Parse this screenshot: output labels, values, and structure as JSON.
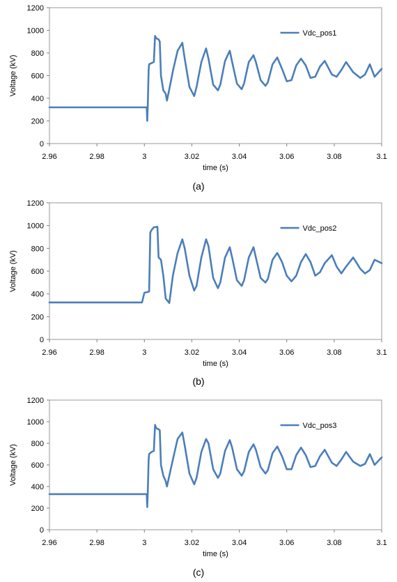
{
  "chart_data": [
    {
      "type": "line",
      "caption": "(a)",
      "xlabel": "time (s)",
      "ylabel": "Voltage (kV)",
      "xlim": [
        2.96,
        3.1
      ],
      "ylim": [
        0,
        1200
      ],
      "xticks": [
        "2.96",
        "2.98",
        "3",
        "3.02",
        "3.04",
        "3.06",
        "3.08",
        "3.1"
      ],
      "yticks": [
        "0",
        "200",
        "400",
        "600",
        "800",
        "1000",
        "1200"
      ],
      "legend_position": "top-right",
      "grid": false,
      "series": [
        {
          "name": "Vdc_pos1",
          "color": "#4a7ebb",
          "x": [
            2.96,
            2.99,
            3.001,
            3.0012,
            3.0014,
            3.0018,
            3.002,
            3.003,
            3.004,
            3.0045,
            3.005,
            3.006,
            3.0065,
            3.007,
            3.008,
            3.009,
            3.0095,
            3.0105,
            3.012,
            3.014,
            3.016,
            3.017,
            3.019,
            3.021,
            3.022,
            3.024,
            3.026,
            3.027,
            3.029,
            3.031,
            3.032,
            3.034,
            3.036,
            3.037,
            3.039,
            3.041,
            3.042,
            3.044,
            3.046,
            3.047,
            3.049,
            3.051,
            3.052,
            3.054,
            3.056,
            3.058,
            3.06,
            3.062,
            3.064,
            3.066,
            3.068,
            3.07,
            3.072,
            3.074,
            3.076,
            3.079,
            3.081,
            3.083,
            3.085,
            3.088,
            3.091,
            3.093,
            3.095,
            3.097,
            3.1
          ],
          "y": [
            320,
            320,
            320,
            200,
            320,
            650,
            700,
            710,
            720,
            950,
            930,
            920,
            900,
            600,
            470,
            440,
            380,
            480,
            640,
            820,
            890,
            750,
            500,
            420,
            500,
            720,
            840,
            750,
            520,
            470,
            520,
            730,
            820,
            720,
            530,
            480,
            530,
            720,
            780,
            720,
            560,
            510,
            540,
            700,
            760,
            660,
            550,
            560,
            690,
            750,
            690,
            580,
            590,
            680,
            730,
            610,
            590,
            650,
            720,
            630,
            580,
            610,
            700,
            590,
            660
          ]
        }
      ]
    },
    {
      "type": "line",
      "caption": "(b)",
      "xlabel": "time (s)",
      "ylabel": "Voltage (kV)",
      "xlim": [
        2.96,
        3.1
      ],
      "ylim": [
        0,
        1200
      ],
      "xticks": [
        "2.96",
        "2.98",
        "3",
        "3.02",
        "3.04",
        "3.06",
        "3.08",
        "3.1"
      ],
      "yticks": [
        "0",
        "200",
        "400",
        "600",
        "800",
        "1000",
        "1200"
      ],
      "legend_position": "top-right",
      "grid": false,
      "series": [
        {
          "name": "Vdc_pos2",
          "color": "#4a7ebb",
          "x": [
            2.96,
            2.999,
            3.0,
            3.002,
            3.0025,
            3.003,
            3.004,
            3.0055,
            3.006,
            3.007,
            3.008,
            3.009,
            3.0105,
            3.012,
            3.014,
            3.016,
            3.017,
            3.019,
            3.021,
            3.022,
            3.024,
            3.026,
            3.027,
            3.029,
            3.031,
            3.032,
            3.034,
            3.036,
            3.037,
            3.039,
            3.041,
            3.042,
            3.044,
            3.046,
            3.047,
            3.049,
            3.051,
            3.052,
            3.054,
            3.056,
            3.058,
            3.06,
            3.062,
            3.064,
            3.066,
            3.068,
            3.07,
            3.072,
            3.074,
            3.076,
            3.079,
            3.081,
            3.083,
            3.085,
            3.088,
            3.091,
            3.093,
            3.095,
            3.097,
            3.1
          ],
          "y": [
            325,
            325,
            410,
            420,
            940,
            960,
            985,
            990,
            720,
            700,
            560,
            360,
            320,
            560,
            760,
            880,
            800,
            560,
            430,
            470,
            720,
            880,
            820,
            540,
            450,
            500,
            720,
            810,
            720,
            520,
            470,
            520,
            720,
            810,
            720,
            540,
            500,
            530,
            700,
            760,
            680,
            560,
            510,
            560,
            680,
            750,
            680,
            560,
            590,
            670,
            740,
            640,
            580,
            640,
            720,
            620,
            580,
            610,
            700,
            670
          ]
        }
      ]
    },
    {
      "type": "line",
      "caption": "(c)",
      "xlabel": "time (s)",
      "ylabel": "Voltage (kV)",
      "xlim": [
        2.96,
        3.1
      ],
      "ylim": [
        0,
        1200
      ],
      "xticks": [
        "2.96",
        "2.98",
        "3",
        "3.02",
        "3.04",
        "3.06",
        "3.08",
        "3.1"
      ],
      "yticks": [
        "0",
        "200",
        "400",
        "600",
        "800",
        "1000",
        "1200"
      ],
      "legend_position": "top-right",
      "grid": false,
      "series": [
        {
          "name": "Vdc_pos3",
          "color": "#4a7ebb",
          "x": [
            2.96,
            2.99,
            3.001,
            3.0012,
            3.0014,
            3.0018,
            3.002,
            3.003,
            3.004,
            3.0045,
            3.005,
            3.006,
            3.0065,
            3.007,
            3.008,
            3.009,
            3.0095,
            3.0105,
            3.012,
            3.014,
            3.016,
            3.017,
            3.019,
            3.021,
            3.022,
            3.024,
            3.026,
            3.027,
            3.029,
            3.031,
            3.032,
            3.034,
            3.036,
            3.037,
            3.039,
            3.041,
            3.042,
            3.044,
            3.046,
            3.047,
            3.049,
            3.051,
            3.052,
            3.054,
            3.056,
            3.058,
            3.06,
            3.062,
            3.064,
            3.066,
            3.068,
            3.07,
            3.072,
            3.074,
            3.076,
            3.079,
            3.081,
            3.083,
            3.085,
            3.088,
            3.091,
            3.093,
            3.095,
            3.097,
            3.1
          ],
          "y": [
            330,
            330,
            330,
            210,
            330,
            650,
            700,
            720,
            730,
            970,
            940,
            930,
            920,
            600,
            500,
            450,
            400,
            500,
            650,
            840,
            900,
            780,
            520,
            420,
            480,
            720,
            840,
            800,
            560,
            480,
            520,
            730,
            830,
            760,
            560,
            500,
            540,
            720,
            790,
            740,
            580,
            520,
            550,
            710,
            770,
            680,
            560,
            560,
            690,
            760,
            690,
            580,
            590,
            680,
            740,
            620,
            590,
            650,
            720,
            630,
            590,
            610,
            700,
            600,
            670
          ]
        }
      ]
    }
  ]
}
